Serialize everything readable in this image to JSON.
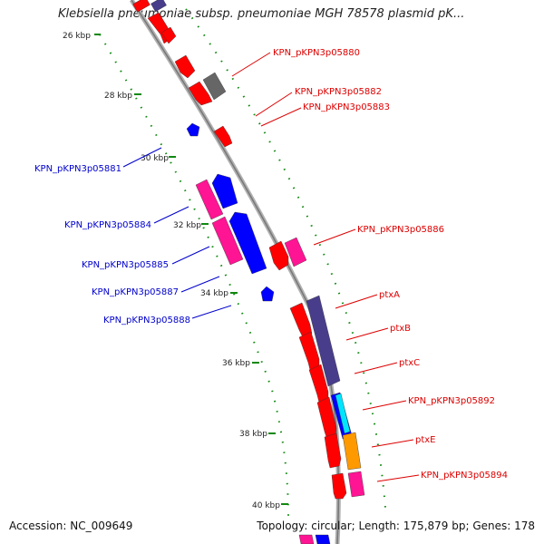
{
  "title": "Klebsiella pneumoniae subsp. pneumoniae MGH 78578 plasmid pK...",
  "accession": "Accession: NC_009649",
  "summary": "Topology: circular; Length: 175,879 bp; Genes: 178",
  "kbp_labels": [
    "26 kbp",
    "28 kbp",
    "30 kbp",
    "32 kbp",
    "34 kbp",
    "36 kbp",
    "38 kbp",
    "40 kbp"
  ],
  "colors": {
    "forward": "#ff0000",
    "reverse": "#0000ff",
    "pseudo_pink": "#ff1493",
    "gray": "#666666",
    "slate": "#483d8b",
    "cyan": "#00e5ff",
    "orange": "#ff9900",
    "dots": "#008800",
    "backbone": "#999999"
  },
  "right_labels": [
    "KPN_pKPN3p05880",
    "KPN_pKPN3p05882",
    "KPN_pKPN3p05883",
    "KPN_pKPN3p05886",
    "ptxA",
    "ptxB",
    "ptxC",
    "KPN_pKPN3p05892",
    "ptxE",
    "KPN_pKPN3p05894"
  ],
  "left_labels": [
    "KPN_pKPN3p05881",
    "KPN_pKPN3p05884",
    "KPN_pKPN3p05885",
    "KPN_pKPN3p05887",
    "KPN_pKPN3p05888"
  ]
}
